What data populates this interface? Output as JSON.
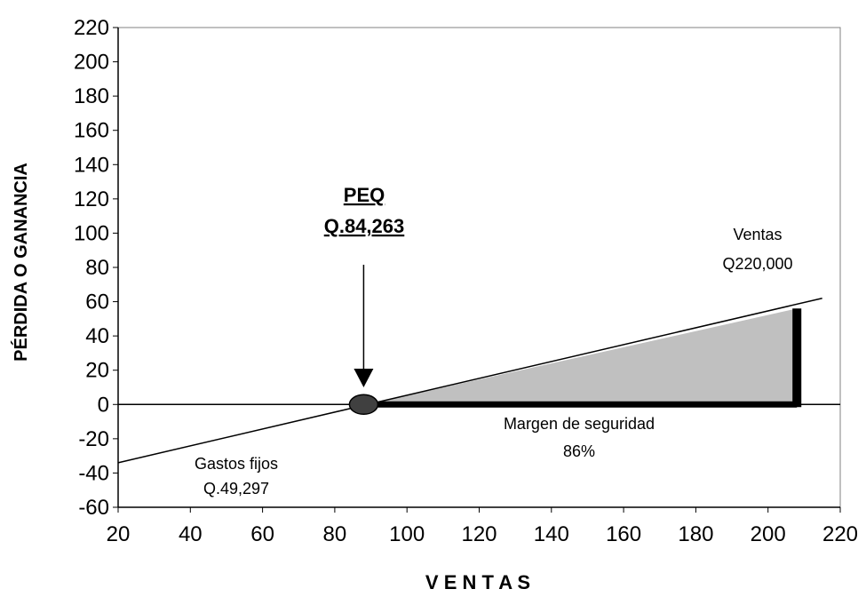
{
  "chart_data": {
    "type": "line",
    "title": "",
    "xlabel": "V E N T A S",
    "ylabel": "PÉRDIDA O GANANCIA",
    "xlim": [
      20,
      220
    ],
    "ylim": [
      -60,
      220
    ],
    "x_ticks": [
      "20",
      "40",
      "60",
      "80",
      "100",
      "120",
      "140",
      "160",
      "180",
      "200",
      "220"
    ],
    "y_ticks": [
      "220",
      "200",
      "180",
      "160",
      "140",
      "120",
      "100",
      "80",
      "60",
      "40",
      "20",
      "0",
      "-20",
      "-40",
      "-60"
    ],
    "grid": false,
    "series": [
      {
        "x": [
          20,
          215
        ],
        "y": [
          -34,
          62
        ]
      }
    ],
    "safety_margin": {
      "x_start": 89,
      "x_end": 208,
      "y_top": 56
    },
    "break_even_x": 88,
    "annotations": {
      "peq_line1": "PEQ",
      "peq_line2": "Q.84,263",
      "ventas_line1": "Ventas",
      "ventas_line2": "Q220,000",
      "margin_line1": "Margen de seguridad",
      "margin_line2": "86%",
      "fixed_line1": "Gastos fijos",
      "fixed_line2": "Q.49,297"
    },
    "colors": {
      "shade": "#c0c0c0",
      "marker": "#404040",
      "line": "#000000"
    }
  }
}
